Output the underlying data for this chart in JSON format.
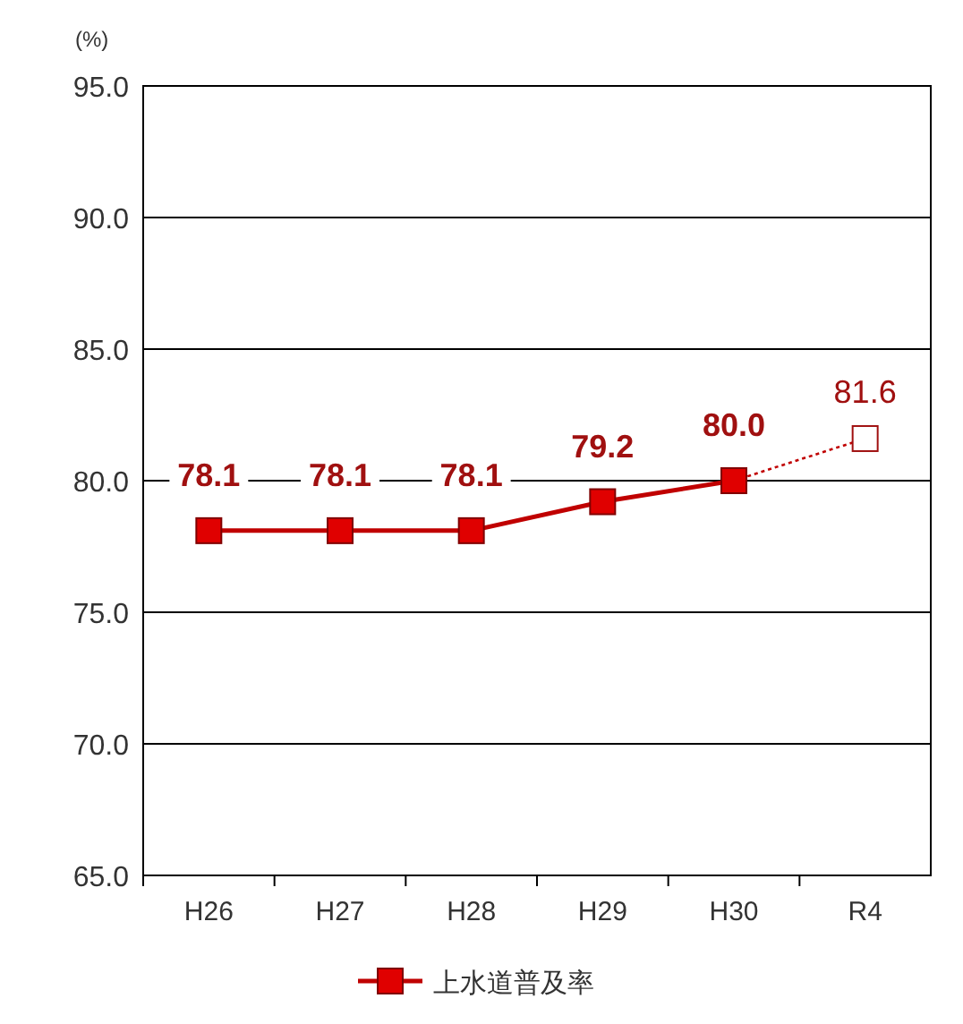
{
  "chart_data": {
    "type": "line",
    "ylabel": "(%)",
    "categories": [
      "H26",
      "H27",
      "H28",
      "H29",
      "H30",
      "R4"
    ],
    "series": [
      {
        "name": "上水道普及率",
        "color": "#c00000",
        "values": [
          78.1,
          78.1,
          78.1,
          79.2,
          80.0,
          null
        ],
        "marker": "square",
        "line_style": "solid",
        "value_labels": [
          "78.1",
          "78.1",
          "78.1",
          "79.2",
          "80.0",
          null
        ]
      },
      {
        "color": "#c00000",
        "values": [
          null,
          null,
          null,
          null,
          80.0,
          81.6
        ],
        "marker": "square",
        "line_style": "dotted",
        "value_labels": [
          null,
          null,
          null,
          null,
          null,
          "81.6"
        ]
      }
    ],
    "ylim": [
      65,
      95
    ],
    "yticks": [
      {
        "value": 65,
        "label": "65.0"
      },
      {
        "value": 70,
        "label": "70.0"
      },
      {
        "value": 75,
        "label": "75.0"
      },
      {
        "value": 80,
        "label": "80.0"
      },
      {
        "value": 85,
        "label": "85.0"
      },
      {
        "value": 90,
        "label": "90.0"
      },
      {
        "value": 95,
        "label": "95.0"
      }
    ],
    "grid": "y",
    "legend": "bottom"
  }
}
